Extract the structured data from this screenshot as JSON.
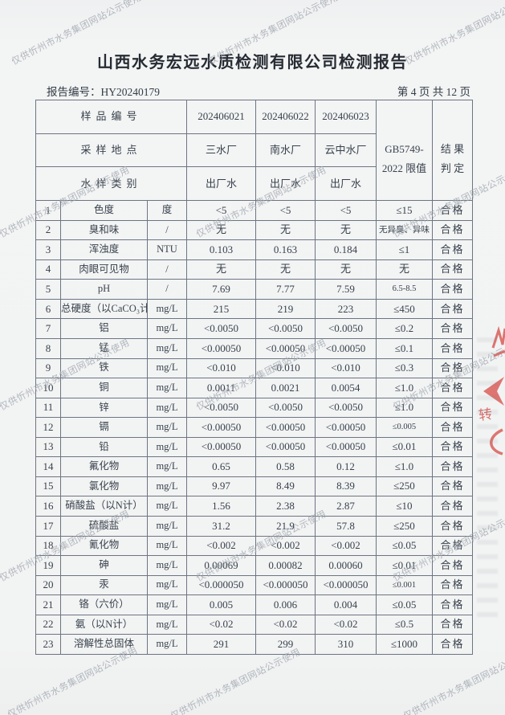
{
  "watermark": {
    "text": "仅供忻州市水务集团网站公示使用"
  },
  "header": {
    "title": "山西水务宏远水质检测有限公司检测报告",
    "report_no_label": "报告编号：",
    "report_no": "HY20240179",
    "page_info": "第 4 页 共 12 页"
  },
  "table": {
    "meta_rows": [
      {
        "label": "样品编号",
        "values": [
          "202406021",
          "202406022",
          "202406023"
        ]
      },
      {
        "label": "采样地点",
        "values": [
          "三水厂",
          "南水厂",
          "云中水厂"
        ]
      },
      {
        "label": "水样类别",
        "values": [
          "出厂水",
          "出厂水",
          "出厂水"
        ]
      }
    ],
    "limit_header_line1": "GB5749-",
    "limit_header_line2": "2022 限值",
    "result_header_line1": "结 果",
    "result_header_line2": "判 定",
    "rows": [
      {
        "no": "1",
        "name": "色度",
        "unit": "度",
        "v1": "<5",
        "v2": "<5",
        "v3": "<5",
        "limit": "≤15",
        "result": "合格"
      },
      {
        "no": "2",
        "name": "臭和味",
        "unit": "/",
        "v1": "无",
        "v2": "无",
        "v3": "无",
        "limit": "无异臭、异味",
        "result": "合格"
      },
      {
        "no": "3",
        "name": "浑浊度",
        "unit": "NTU",
        "v1": "0.103",
        "v2": "0.163",
        "v3": "0.184",
        "limit": "≤1",
        "result": "合格"
      },
      {
        "no": "4",
        "name": "肉眼可见物",
        "unit": "/",
        "v1": "无",
        "v2": "无",
        "v3": "无",
        "limit": "无",
        "result": "合格"
      },
      {
        "no": "5",
        "name": "pH",
        "unit": "/",
        "v1": "7.69",
        "v2": "7.77",
        "v3": "7.59",
        "limit": "6.5-8.5",
        "result": "合格"
      },
      {
        "no": "6",
        "name": "总硬度（以CaCO₃计）",
        "unit": "mg/L",
        "v1": "215",
        "v2": "219",
        "v3": "223",
        "limit": "≤450",
        "result": "合格"
      },
      {
        "no": "7",
        "name": "铝",
        "unit": "mg/L",
        "v1": "<0.0050",
        "v2": "<0.0050",
        "v3": "<0.0050",
        "limit": "≤0.2",
        "result": "合格"
      },
      {
        "no": "8",
        "name": "锰",
        "unit": "mg/L",
        "v1": "<0.00050",
        "v2": "<0.00050",
        "v3": "<0.00050",
        "limit": "≤0.1",
        "result": "合格"
      },
      {
        "no": "9",
        "name": "铁",
        "unit": "mg/L",
        "v1": "<0.010",
        "v2": "<0.010",
        "v3": "<0.010",
        "limit": "≤0.3",
        "result": "合格"
      },
      {
        "no": "10",
        "name": "铜",
        "unit": "mg/L",
        "v1": "0.0011",
        "v2": "0.0021",
        "v3": "0.0054",
        "limit": "≤1.0",
        "result": "合格"
      },
      {
        "no": "11",
        "name": "锌",
        "unit": "mg/L",
        "v1": "<0.0050",
        "v2": "<0.0050",
        "v3": "<0.0050",
        "limit": "≤1.0",
        "result": "合格"
      },
      {
        "no": "12",
        "name": "镉",
        "unit": "mg/L",
        "v1": "<0.00050",
        "v2": "<0.00050",
        "v3": "<0.00050",
        "limit": "≤0.005",
        "result": "合格"
      },
      {
        "no": "13",
        "name": "铅",
        "unit": "mg/L",
        "v1": "<0.00050",
        "v2": "<0.00050",
        "v3": "<0.00050",
        "limit": "≤0.01",
        "result": "合格"
      },
      {
        "no": "14",
        "name": "氟化物",
        "unit": "mg/L",
        "v1": "0.65",
        "v2": "0.58",
        "v3": "0.12",
        "limit": "≤1.0",
        "result": "合格"
      },
      {
        "no": "15",
        "name": "氯化物",
        "unit": "mg/L",
        "v1": "9.97",
        "v2": "8.49",
        "v3": "8.39",
        "limit": "≤250",
        "result": "合格"
      },
      {
        "no": "16",
        "name": "硝酸盐（以N计）",
        "unit": "mg/L",
        "v1": "1.56",
        "v2": "2.38",
        "v3": "2.87",
        "limit": "≤10",
        "result": "合格"
      },
      {
        "no": "17",
        "name": "硫酸盐",
        "unit": "mg/L",
        "v1": "31.2",
        "v2": "21.9",
        "v3": "57.8",
        "limit": "≤250",
        "result": "合格"
      },
      {
        "no": "18",
        "name": "氰化物",
        "unit": "mg/L",
        "v1": "<0.002",
        "v2": "<0.002",
        "v3": "<0.002",
        "limit": "≤0.05",
        "result": "合格"
      },
      {
        "no": "19",
        "name": "砷",
        "unit": "mg/L",
        "v1": "0.00069",
        "v2": "0.00082",
        "v3": "0.00060",
        "limit": "≤0.01",
        "result": "合格"
      },
      {
        "no": "20",
        "name": "汞",
        "unit": "mg/L",
        "v1": "<0.000050",
        "v2": "<0.000050",
        "v3": "<0.000050",
        "limit": "≤0.001",
        "result": "合格"
      },
      {
        "no": "21",
        "name": "铬（六价）",
        "unit": "mg/L",
        "v1": "0.005",
        "v2": "0.006",
        "v3": "0.004",
        "limit": "≤0.05",
        "result": "合格"
      },
      {
        "no": "22",
        "name": "氨（以N计）",
        "unit": "mg/L",
        "v1": "<0.02",
        "v2": "<0.02",
        "v3": "<0.02",
        "limit": "≤0.5",
        "result": "合格"
      },
      {
        "no": "23",
        "name": "溶解性总固体",
        "unit": "mg/L",
        "v1": "291",
        "v2": "299",
        "v3": "310",
        "limit": "≤1000",
        "result": "合格"
      }
    ]
  },
  "stamp": {
    "fragment_chars": "转",
    "color": "#d85550"
  }
}
